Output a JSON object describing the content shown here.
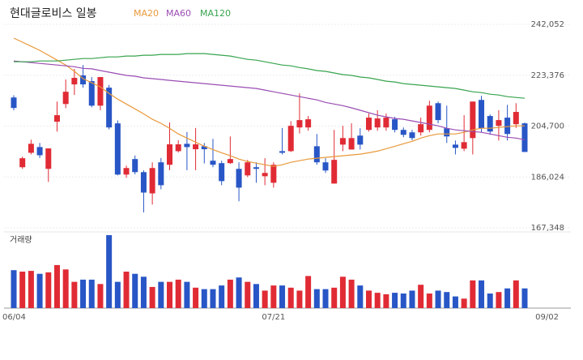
{
  "chart_data": {
    "type": "candlestick",
    "title": "현대글로비스 일봉",
    "volume_label": "거래량",
    "categories": [
      "06/04",
      null,
      null,
      null,
      null,
      null,
      null,
      null,
      null,
      null,
      null,
      null,
      null,
      null,
      null,
      null,
      null,
      null,
      null,
      null,
      null,
      null,
      null,
      null,
      null,
      null,
      null,
      null,
      null,
      null,
      "07/21",
      null,
      null,
      null,
      null,
      null,
      null,
      null,
      null,
      null,
      null,
      null,
      null,
      null,
      null,
      null,
      null,
      null,
      null,
      null,
      null,
      null,
      null,
      null,
      null,
      null,
      null,
      null,
      null,
      "09/02"
    ],
    "open": [
      215200,
      189600,
      194900,
      197000,
      189000,
      206300,
      212800,
      220000,
      223300,
      221200,
      212200,
      218800,
      205700,
      186900,
      192600,
      187800,
      180000,
      191400,
      190500,
      195500,
      198200,
      196200,
      197300,
      192000,
      191100,
      191100,
      189000,
      186600,
      189600,
      186300,
      183900,
      195500,
      195500,
      204200,
      204200,
      197300,
      191400,
      183600,
      197900,
      196100,
      201200,
      203300,
      204200,
      204200,
      207200,
      203300,
      202400,
      202400,
      203300,
      213100,
      203900,
      197900,
      196400,
      200300,
      214300,
      208400,
      204800,
      207800,
      205400,
      205700
    ],
    "high": [
      216000,
      193500,
      199700,
      198500,
      196500,
      213700,
      221800,
      225700,
      227100,
      222700,
      222700,
      219800,
      206800,
      190200,
      193900,
      188500,
      191400,
      193000,
      206000,
      199500,
      202500,
      204000,
      198500,
      200000,
      192000,
      200900,
      191400,
      192300,
      191400,
      192900,
      191400,
      204000,
      206500,
      216700,
      208400,
      201800,
      192900,
      203300,
      204800,
      205700,
      203900,
      209300,
      210500,
      209300,
      208100,
      204200,
      203300,
      207800,
      214000,
      213700,
      212200,
      199400,
      208700,
      213700,
      215800,
      209000,
      210500,
      212500,
      213100,
      206000
    ],
    "low": [
      210500,
      189000,
      194300,
      193000,
      184200,
      202700,
      211300,
      216100,
      218800,
      211600,
      210500,
      203500,
      186600,
      185700,
      187000,
      173000,
      175900,
      181500,
      188500,
      195000,
      188500,
      188500,
      191000,
      189600,
      183000,
      190800,
      177100,
      186000,
      183900,
      183000,
      182100,
      194300,
      195200,
      202000,
      203000,
      190500,
      187500,
      183600,
      195500,
      196100,
      196100,
      202700,
      203000,
      203000,
      202400,
      200600,
      199500,
      201200,
      202400,
      205700,
      198500,
      194300,
      195500,
      194300,
      202400,
      201500,
      199400,
      199400,
      204000,
      195200
    ],
    "close": [
      211350,
      192900,
      198200,
      194000,
      196500,
      208700,
      217300,
      222400,
      220000,
      212200,
      222700,
      204200,
      186900,
      189300,
      187800,
      180300,
      189300,
      183000,
      198000,
      198000,
      197000,
      198000,
      196200,
      190500,
      184500,
      192600,
      182100,
      191400,
      189000,
      187500,
      190500,
      194900,
      204800,
      206900,
      207200,
      191400,
      188400,
      192300,
      200300,
      200300,
      197900,
      207800,
      207500,
      207800,
      203300,
      201500,
      200300,
      205400,
      212200,
      206900,
      200900,
      196700,
      198800,
      213700,
      203900,
      202700,
      206900,
      201800,
      209900,
      195200
    ],
    "volume": [
      52,
      50,
      51,
      47,
      49,
      59,
      53,
      36,
      39,
      39,
      33,
      100,
      36,
      50,
      47,
      43,
      29,
      36,
      36,
      39,
      36,
      28,
      26,
      26,
      31,
      39,
      42,
      36,
      33,
      24,
      31,
      31,
      28,
      24,
      44,
      26,
      26,
      28,
      43,
      39,
      31,
      24,
      21,
      19,
      21,
      20,
      24,
      32,
      20,
      24,
      22,
      16,
      13,
      38,
      38,
      20,
      22,
      27,
      38,
      27
    ],
    "volume_ylim": [
      0,
      100
    ],
    "up_color": "#e02b35",
    "down_color": "#2856c6",
    "series": [
      {
        "name": "MA20",
        "color": "#e8993a",
        "values": [
          237000,
          235500,
          234000,
          232500,
          230700,
          228900,
          227100,
          224800,
          222100,
          220600,
          219100,
          216700,
          214600,
          212800,
          211000,
          209200,
          207200,
          205700,
          203900,
          201800,
          200300,
          198800,
          197300,
          196100,
          194900,
          193800,
          192600,
          191700,
          191100,
          190500,
          189900,
          190500,
          191400,
          192000,
          192600,
          192900,
          193200,
          193500,
          193800,
          194100,
          194400,
          194900,
          195500,
          196400,
          197300,
          198200,
          199100,
          200300,
          201200,
          201800,
          201800,
          201800,
          202400,
          203300,
          203900,
          203900,
          204200,
          204500,
          204800,
          204800
        ]
      },
      {
        "name": "MA60",
        "color": "#9a4db3",
        "values": [
          228600,
          228300,
          228000,
          227700,
          227400,
          227100,
          226800,
          226500,
          225900,
          225700,
          225100,
          224500,
          223900,
          223300,
          223000,
          222400,
          222100,
          221800,
          221500,
          221200,
          220900,
          220600,
          220300,
          220000,
          219700,
          219400,
          219100,
          218800,
          218500,
          217900,
          217300,
          216700,
          216100,
          215500,
          214900,
          214300,
          213400,
          212800,
          212200,
          211400,
          210500,
          209600,
          208700,
          208100,
          207500,
          207200,
          206600,
          206000,
          205400,
          204800,
          203900,
          203300,
          203000,
          202700,
          202400,
          201800,
          201200,
          200600,
          200300,
          199700
        ]
      },
      {
        "name": "MA120",
        "color": "#38a44f",
        "values": [
          228300,
          228300,
          228300,
          228600,
          228600,
          228600,
          228900,
          229200,
          229500,
          229500,
          229800,
          230100,
          230100,
          230400,
          230400,
          230700,
          230700,
          231000,
          231000,
          231000,
          231300,
          231300,
          231300,
          231000,
          230700,
          230400,
          229800,
          229200,
          228900,
          228300,
          227700,
          227100,
          226800,
          226200,
          225700,
          225100,
          224800,
          224200,
          223600,
          223300,
          222700,
          222400,
          221800,
          221200,
          220900,
          220300,
          220000,
          219700,
          219400,
          219100,
          218800,
          218500,
          217900,
          217300,
          217000,
          216400,
          216100,
          215500,
          215200,
          214900
        ]
      }
    ],
    "ylim": [
      167348,
      242052
    ],
    "yticks": [
      {
        "value": 242052,
        "label": "242,052"
      },
      {
        "value": 223376,
        "label": "223,376"
      },
      {
        "value": 204700,
        "label": "204,700"
      },
      {
        "value": 186024,
        "label": "186,024"
      },
      {
        "value": 167348,
        "label": "167,348"
      }
    ],
    "grid": true
  }
}
